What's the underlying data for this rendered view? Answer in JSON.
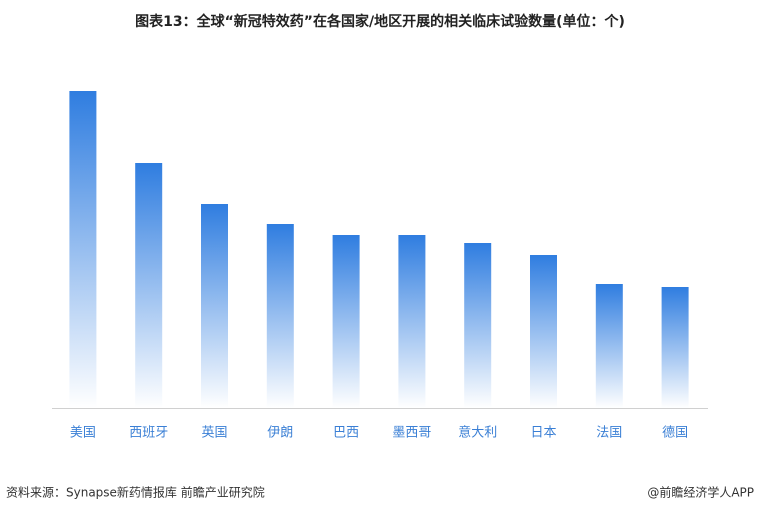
{
  "chart_data": {
    "type": "bar",
    "title": "图表13：全球“新冠特效药”在各国家/地区开展的相关临床试验数量(单位：个)",
    "categories": [
      "美国",
      "西班牙",
      "英国",
      "伊朗",
      "巴西",
      "墨西哥",
      "意大利",
      "日本",
      "法国",
      "德国"
    ],
    "values": [
      317,
      245,
      204,
      184,
      173,
      173,
      165,
      153,
      124,
      121
    ],
    "color": "#2f7de0",
    "source": "资料来源：Synapse新药情报库 前瞻产业研究院",
    "credit": "@前瞻经济学人APP"
  }
}
